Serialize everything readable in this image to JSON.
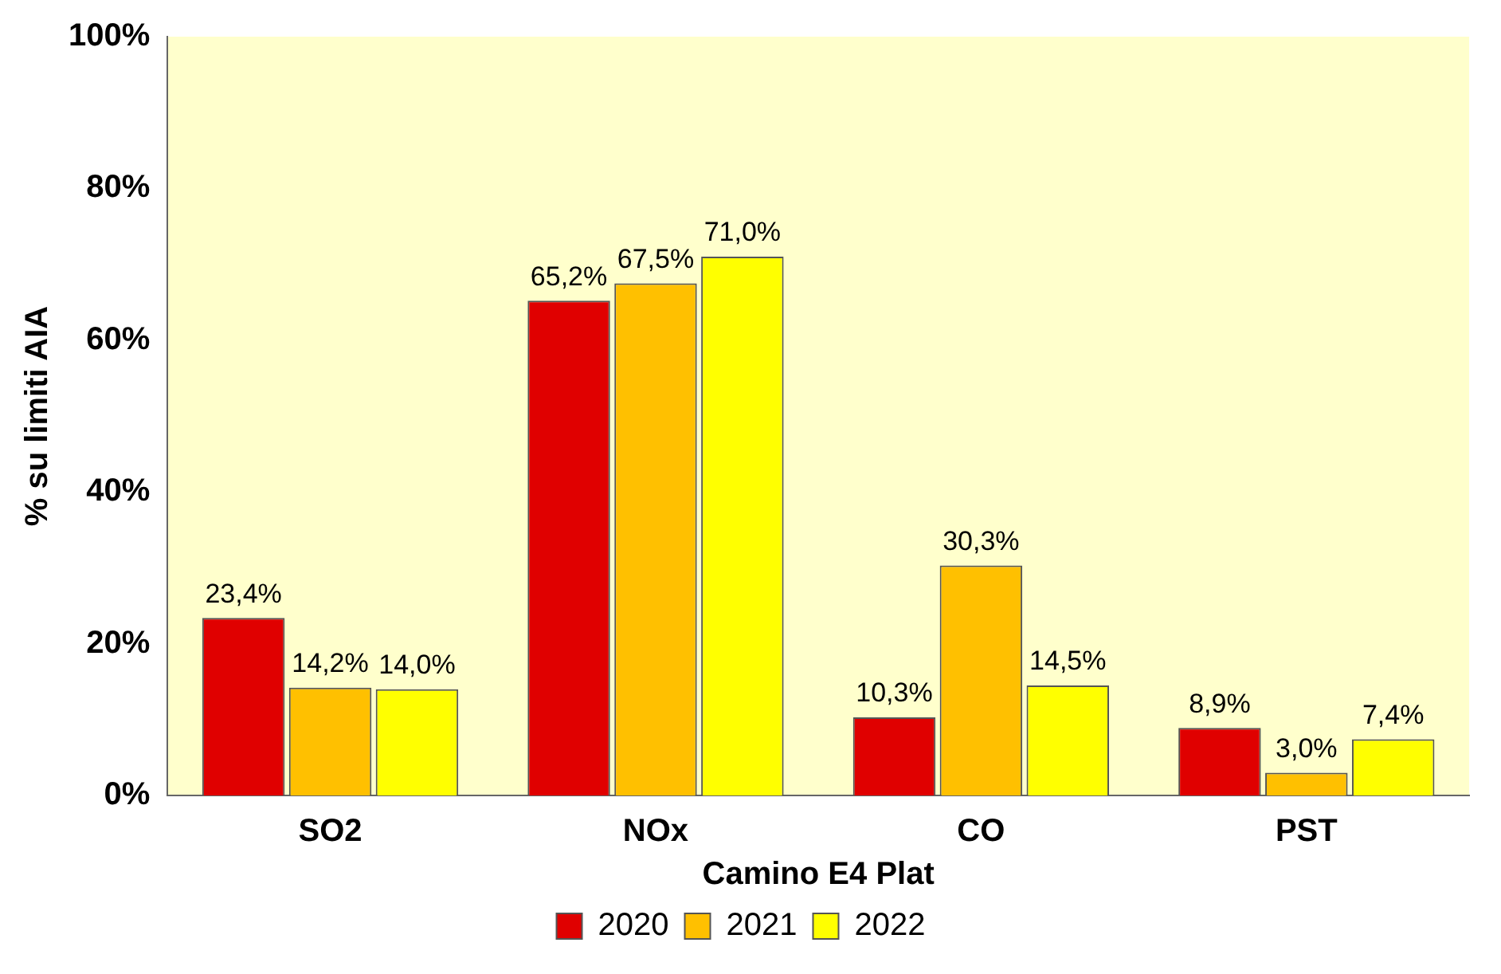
{
  "chart_data": {
    "type": "bar",
    "xlabel": "Camino E4 Plat",
    "ylabel": "% su limiti AIA",
    "categories": [
      "SO2",
      "NOx",
      "CO",
      "PST"
    ],
    "series": [
      {
        "name": "2020",
        "color": "#e00000",
        "values": [
          23.4,
          65.2,
          10.3,
          8.9
        ],
        "value_labels": [
          "23,4%",
          "65,2%",
          "10,3%",
          "8,9%"
        ]
      },
      {
        "name": "2021",
        "color": "#ffc000",
        "values": [
          14.2,
          67.5,
          30.3,
          3.0
        ],
        "value_labels": [
          "14,2%",
          "67,5%",
          "30,3%",
          "3,0%"
        ]
      },
      {
        "name": "2022",
        "color": "#ffff00",
        "values": [
          14.0,
          71.0,
          14.5,
          7.4
        ],
        "value_labels": [
          "14,0%",
          "71,0%",
          "14,5%",
          "7,4%"
        ]
      }
    ],
    "ylim": [
      0,
      100
    ],
    "yticks": [
      {
        "value": 0,
        "label": "0%"
      },
      {
        "value": 20,
        "label": "20%"
      },
      {
        "value": 40,
        "label": "40%"
      },
      {
        "value": 60,
        "label": "60%"
      },
      {
        "value": 80,
        "label": "80%"
      },
      {
        "value": 100,
        "label": "100%"
      }
    ],
    "grid": false,
    "legend": "bottom"
  }
}
